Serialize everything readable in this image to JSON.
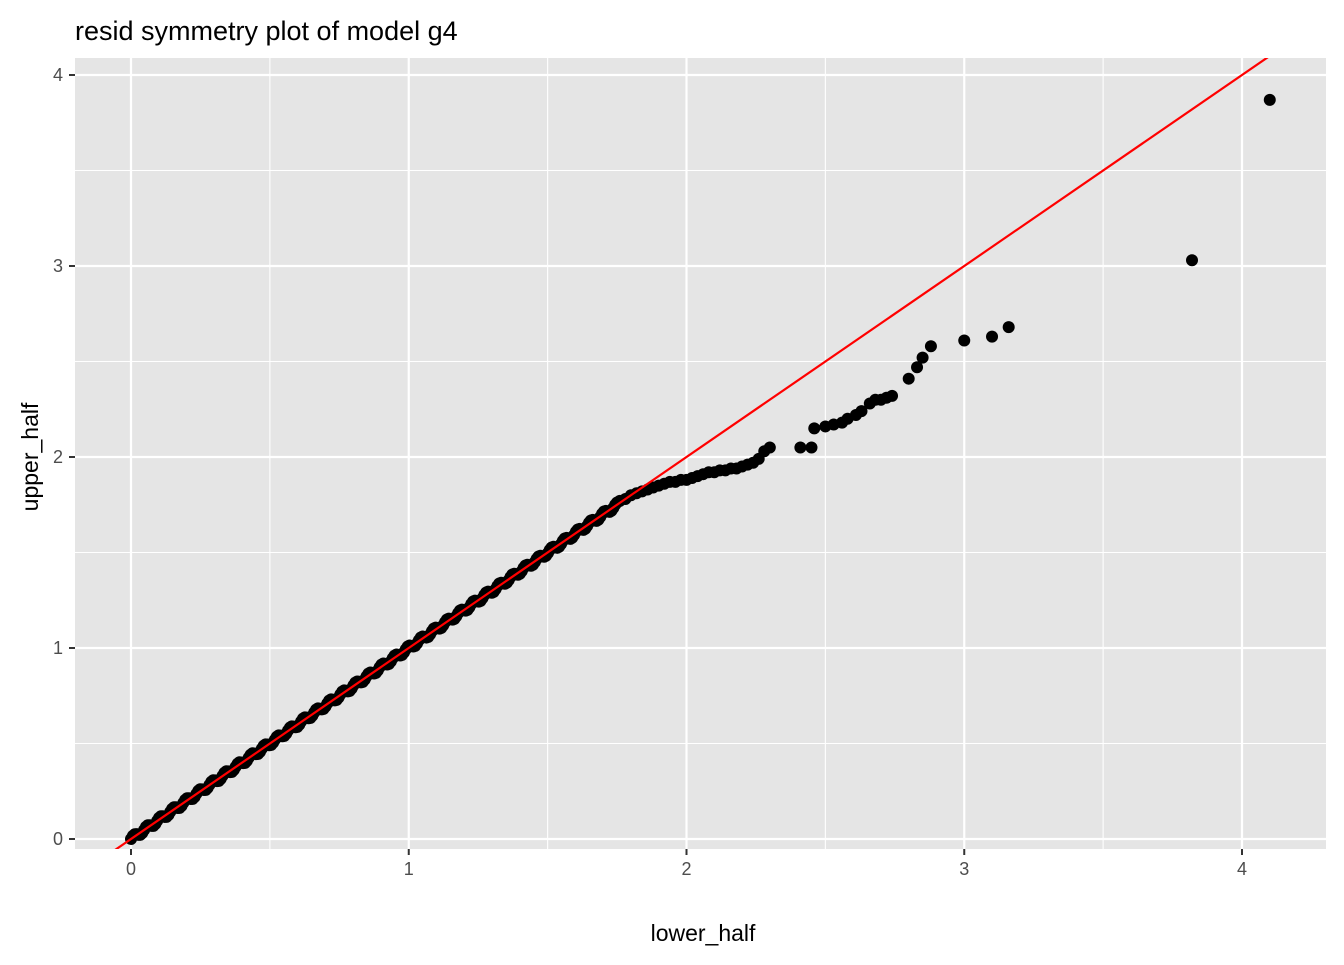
{
  "chart_data": {
    "type": "scatter",
    "title": "resid symmetry plot of model g4",
    "xlabel": "lower_half",
    "ylabel": "upper_half",
    "xlim": [
      -0.2,
      4.28
    ],
    "ylim": [
      -0.2,
      4.07
    ],
    "x_ticks": [
      0,
      1,
      2,
      3,
      4
    ],
    "y_ticks": [
      0,
      1,
      2,
      3,
      4
    ],
    "x_tick_labels": [
      "0",
      "1",
      "2",
      "3",
      "4"
    ],
    "y_tick_labels": [
      "0",
      "1",
      "2",
      "3",
      "4"
    ],
    "grid": true,
    "background_color": "#e5e5e5",
    "grid_color": "#ffffff",
    "point_color": "#000000",
    "reference_line": {
      "slope": 1,
      "intercept": 0,
      "color": "#ff0000"
    },
    "dense_band": {
      "x_from": 0.0,
      "x_to": 1.75,
      "y_from": 0.0,
      "y_to": 1.75,
      "n": 260
    },
    "points": [
      [
        1.76,
        1.77
      ],
      [
        1.78,
        1.78
      ],
      [
        1.8,
        1.8
      ],
      [
        1.82,
        1.81
      ],
      [
        1.84,
        1.82
      ],
      [
        1.86,
        1.83
      ],
      [
        1.88,
        1.84
      ],
      [
        1.9,
        1.85
      ],
      [
        1.92,
        1.86
      ],
      [
        1.94,
        1.87
      ],
      [
        1.96,
        1.87
      ],
      [
        1.98,
        1.88
      ],
      [
        2.0,
        1.88
      ],
      [
        2.02,
        1.89
      ],
      [
        2.04,
        1.9
      ],
      [
        2.06,
        1.91
      ],
      [
        2.08,
        1.92
      ],
      [
        2.1,
        1.92
      ],
      [
        2.12,
        1.93
      ],
      [
        2.14,
        1.93
      ],
      [
        2.16,
        1.94
      ],
      [
        2.18,
        1.94
      ],
      [
        2.2,
        1.95
      ],
      [
        2.22,
        1.96
      ],
      [
        2.24,
        1.97
      ],
      [
        2.26,
        1.99
      ],
      [
        2.28,
        2.03
      ],
      [
        2.3,
        2.05
      ],
      [
        2.41,
        2.05
      ],
      [
        2.45,
        2.05
      ],
      [
        2.46,
        2.15
      ],
      [
        2.5,
        2.16
      ],
      [
        2.53,
        2.17
      ],
      [
        2.56,
        2.18
      ],
      [
        2.58,
        2.2
      ],
      [
        2.61,
        2.22
      ],
      [
        2.63,
        2.24
      ],
      [
        2.66,
        2.28
      ],
      [
        2.68,
        2.3
      ],
      [
        2.7,
        2.3
      ],
      [
        2.72,
        2.31
      ],
      [
        2.74,
        2.32
      ],
      [
        2.8,
        2.41
      ],
      [
        2.83,
        2.47
      ],
      [
        2.85,
        2.52
      ],
      [
        2.88,
        2.58
      ],
      [
        3.0,
        2.61
      ],
      [
        3.1,
        2.63
      ],
      [
        3.16,
        2.68
      ],
      [
        3.82,
        3.03
      ],
      [
        4.1,
        3.87
      ]
    ]
  }
}
